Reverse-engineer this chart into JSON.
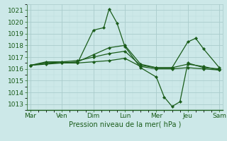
{
  "background_color": "#cce8e8",
  "grid_color_major": "#aacccc",
  "grid_color_minor": "#bbdddd",
  "line_color": "#1a5c1a",
  "xlabel": "Pression niveau de la mer( hPa )",
  "xlabel_fontsize": 7,
  "tick_fontsize": 6.5,
  "ylim": [
    1012.5,
    1021.5
  ],
  "yticks": [
    1013,
    1014,
    1015,
    1016,
    1017,
    1018,
    1019,
    1020,
    1021
  ],
  "day_labels": [
    "Mar",
    "Ven",
    "Dim",
    "Lun",
    "Mer",
    "Jeu",
    "Sam"
  ],
  "day_positions": [
    0,
    1,
    2,
    3,
    4,
    5,
    6
  ],
  "xlim": [
    -0.1,
    6.1
  ],
  "lines": [
    {
      "x": [
        0,
        0.5,
        1,
        1.5,
        2,
        2.33,
        2.5,
        2.75,
        3,
        3.5,
        4,
        4.25,
        4.5,
        4.75,
        5,
        5.5,
        6
      ],
      "y": [
        1016.3,
        1016.6,
        1016.6,
        1016.5,
        1019.3,
        1019.5,
        1021.1,
        1019.9,
        1017.9,
        1016.1,
        1015.3,
        1013.6,
        1012.8,
        1013.2,
        1016.5,
        1016.1,
        1016.0
      ]
    },
    {
      "x": [
        0,
        0.5,
        1,
        1.5,
        2,
        2.5,
        3,
        3.5,
        4,
        4.5,
        5,
        5.25,
        5.5,
        6
      ],
      "y": [
        1016.3,
        1016.5,
        1016.5,
        1016.6,
        1017.2,
        1017.8,
        1018.0,
        1016.4,
        1016.1,
        1016.1,
        1018.3,
        1018.6,
        1017.7,
        1016.1
      ]
    },
    {
      "x": [
        0,
        0.5,
        1,
        1.5,
        2,
        2.5,
        3,
        3.5,
        4,
        4.5,
        5,
        5.5,
        6
      ],
      "y": [
        1016.3,
        1016.5,
        1016.6,
        1016.7,
        1017.0,
        1017.3,
        1017.5,
        1016.3,
        1016.1,
        1016.1,
        1016.4,
        1016.2,
        1015.9
      ]
    },
    {
      "x": [
        0,
        0.5,
        1,
        1.5,
        2,
        2.5,
        3,
        3.5,
        4,
        4.5,
        5,
        5.5,
        6
      ],
      "y": [
        1016.3,
        1016.4,
        1016.5,
        1016.5,
        1016.6,
        1016.7,
        1016.9,
        1016.2,
        1016.0,
        1016.0,
        1016.1,
        1016.0,
        1015.9
      ]
    }
  ]
}
